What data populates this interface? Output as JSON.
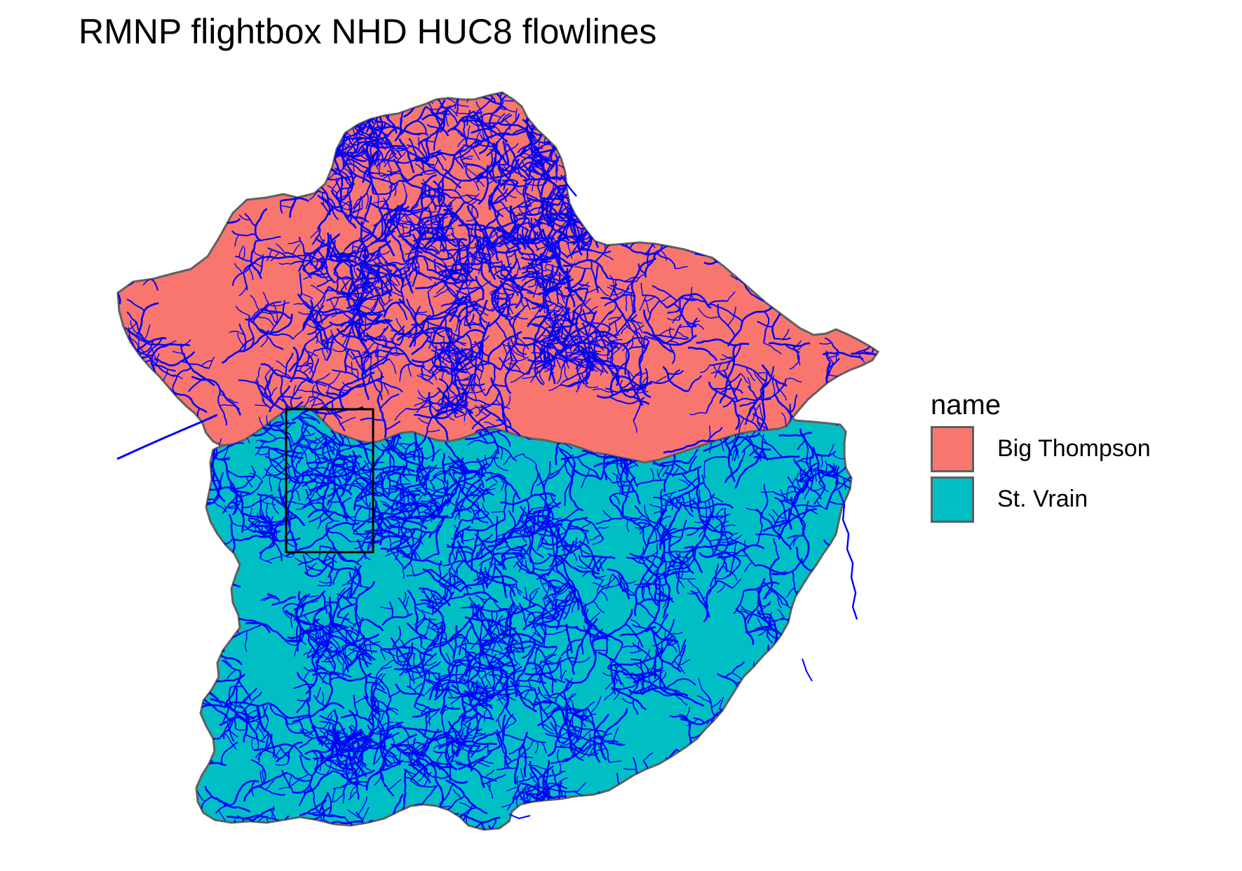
{
  "title": "RMNP flightbox NHD HUC8 flowlines",
  "legend": {
    "title": "name",
    "items": [
      {
        "label": "Big Thompson",
        "color": "#F8766D"
      },
      {
        "label": "St. Vrain",
        "color": "#00BFC4"
      }
    ]
  },
  "colors": {
    "flowlines": "#0000FF",
    "boundary": "#5f5f5f",
    "flightbox": "#000000",
    "background": "#FFFFFF"
  }
}
